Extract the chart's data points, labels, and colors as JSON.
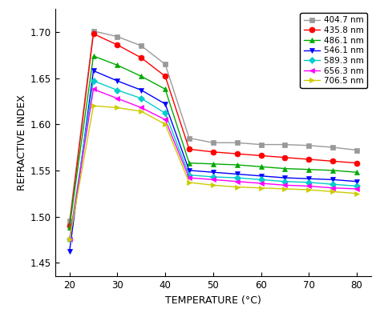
{
  "title": "",
  "xlabel": "TEMPERATURE (°C)",
  "ylabel": "REFRACTIVE INDEX",
  "series": [
    {
      "label": "404.7 nm",
      "color": "#999999",
      "marker": "s",
      "markersize": 5,
      "x": [
        20,
        25,
        30,
        35,
        40,
        45,
        50,
        55,
        60,
        65,
        70,
        75,
        80
      ],
      "y": [
        1.495,
        1.701,
        1.695,
        1.685,
        1.665,
        1.585,
        1.58,
        1.58,
        1.578,
        1.578,
        1.577,
        1.575,
        1.572
      ]
    },
    {
      "label": "435.8 nm",
      "color": "#ff0000",
      "marker": "o",
      "markersize": 5,
      "x": [
        20,
        25,
        30,
        35,
        40,
        45,
        50,
        55,
        60,
        65,
        70,
        75,
        80
      ],
      "y": [
        1.49,
        1.698,
        1.686,
        1.672,
        1.652,
        1.573,
        1.57,
        1.568,
        1.566,
        1.564,
        1.562,
        1.56,
        1.558
      ]
    },
    {
      "label": "486.1 nm",
      "color": "#00aa00",
      "marker": "^",
      "markersize": 5,
      "x": [
        20,
        25,
        30,
        35,
        40,
        45,
        50,
        55,
        60,
        65,
        70,
        75,
        80
      ],
      "y": [
        1.488,
        1.674,
        1.664,
        1.652,
        1.638,
        1.558,
        1.557,
        1.556,
        1.554,
        1.552,
        1.551,
        1.55,
        1.548
      ]
    },
    {
      "label": "546.1 nm",
      "color": "#0000ff",
      "marker": "v",
      "markersize": 5,
      "x": [
        20,
        25,
        30,
        35,
        40,
        45,
        50,
        55,
        60,
        65,
        70,
        75,
        80
      ],
      "y": [
        1.462,
        1.658,
        1.647,
        1.637,
        1.622,
        1.55,
        1.548,
        1.546,
        1.544,
        1.542,
        1.541,
        1.54,
        1.538
      ]
    },
    {
      "label": "589.3 nm",
      "color": "#00cccc",
      "marker": "D",
      "markersize": 4,
      "x": [
        20,
        25,
        30,
        35,
        40,
        45,
        50,
        55,
        60,
        65,
        70,
        75,
        80
      ],
      "y": [
        1.475,
        1.647,
        1.637,
        1.628,
        1.612,
        1.545,
        1.543,
        1.542,
        1.54,
        1.538,
        1.537,
        1.535,
        1.533
      ]
    },
    {
      "label": "656.3 nm",
      "color": "#ff00ff",
      "marker": "<",
      "markersize": 5,
      "x": [
        20,
        25,
        30,
        35,
        40,
        45,
        50,
        55,
        60,
        65,
        70,
        75,
        80
      ],
      "y": [
        1.475,
        1.638,
        1.628,
        1.618,
        1.605,
        1.542,
        1.54,
        1.538,
        1.536,
        1.534,
        1.533,
        1.531,
        1.53
      ]
    },
    {
      "label": "706.5 nm",
      "color": "#cccc00",
      "marker": ">",
      "markersize": 5,
      "x": [
        20,
        25,
        30,
        35,
        40,
        45,
        50,
        55,
        60,
        65,
        70,
        75,
        80
      ],
      "y": [
        1.475,
        1.62,
        1.618,
        1.614,
        1.6,
        1.537,
        1.534,
        1.532,
        1.531,
        1.53,
        1.529,
        1.527,
        1.525
      ]
    }
  ],
  "xlim": [
    17,
    83
  ],
  "ylim": [
    1.435,
    1.725
  ],
  "xticks": [
    20,
    30,
    40,
    50,
    60,
    70,
    80
  ],
  "yticks": [
    1.45,
    1.5,
    1.55,
    1.6,
    1.65,
    1.7
  ],
  "legend_loc": "upper right",
  "figsize": [
    4.74,
    4.01
  ],
  "dpi": 100
}
